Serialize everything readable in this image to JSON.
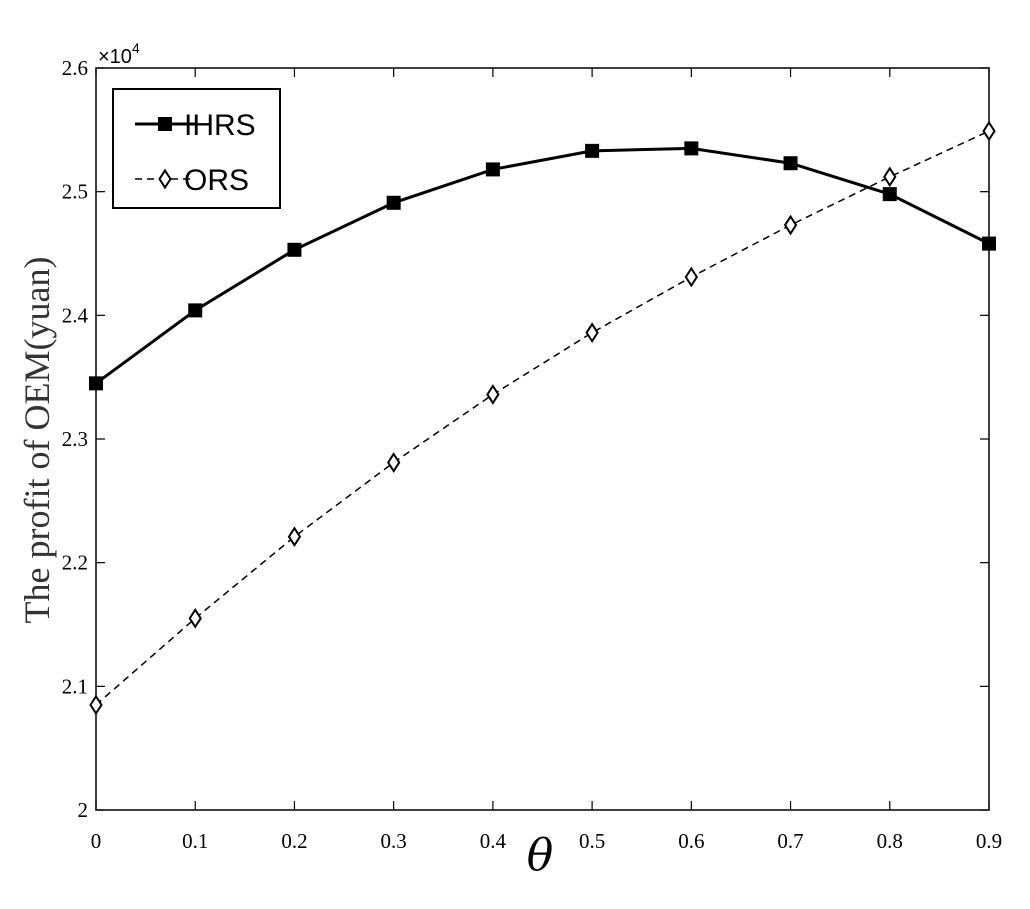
{
  "chart_data": {
    "type": "line",
    "title": "",
    "xlabel": "θ",
    "ylabel": "The profit of OEM(yuan)",
    "y_multiplier": {
      "base": "×10",
      "exponent": "4"
    },
    "x": [
      0,
      0.1,
      0.2,
      0.3,
      0.4,
      0.5,
      0.6,
      0.7,
      0.8,
      0.9
    ],
    "x_tick_labels": [
      "0",
      "0.1",
      "0.2",
      "0.3",
      "0.4",
      "0.5",
      "0.6",
      "0.7",
      "0.8",
      "0.9"
    ],
    "xlim": [
      0,
      0.9
    ],
    "y_ticks": [
      2,
      2.1,
      2.2,
      2.3,
      2.4,
      2.5,
      2.6
    ],
    "y_tick_labels": [
      "2",
      "2.1",
      "2.2",
      "2.3",
      "2.4",
      "2.5",
      "2.6"
    ],
    "ylim": [
      2,
      2.6
    ],
    "grid": false,
    "legend_position": "top-left",
    "series": [
      {
        "name": "IHRS",
        "color": "#000000",
        "line_style": "solid",
        "marker": "square",
        "values": [
          2.345,
          2.404,
          2.453,
          2.491,
          2.518,
          2.533,
          2.535,
          2.523,
          2.498,
          2.458
        ]
      },
      {
        "name": "ORS",
        "color": "#000000",
        "line_style": "dashed",
        "marker": "diamond",
        "values": [
          2.085,
          2.155,
          2.221,
          2.281,
          2.336,
          2.386,
          2.431,
          2.473,
          2.512,
          2.549
        ]
      }
    ]
  }
}
